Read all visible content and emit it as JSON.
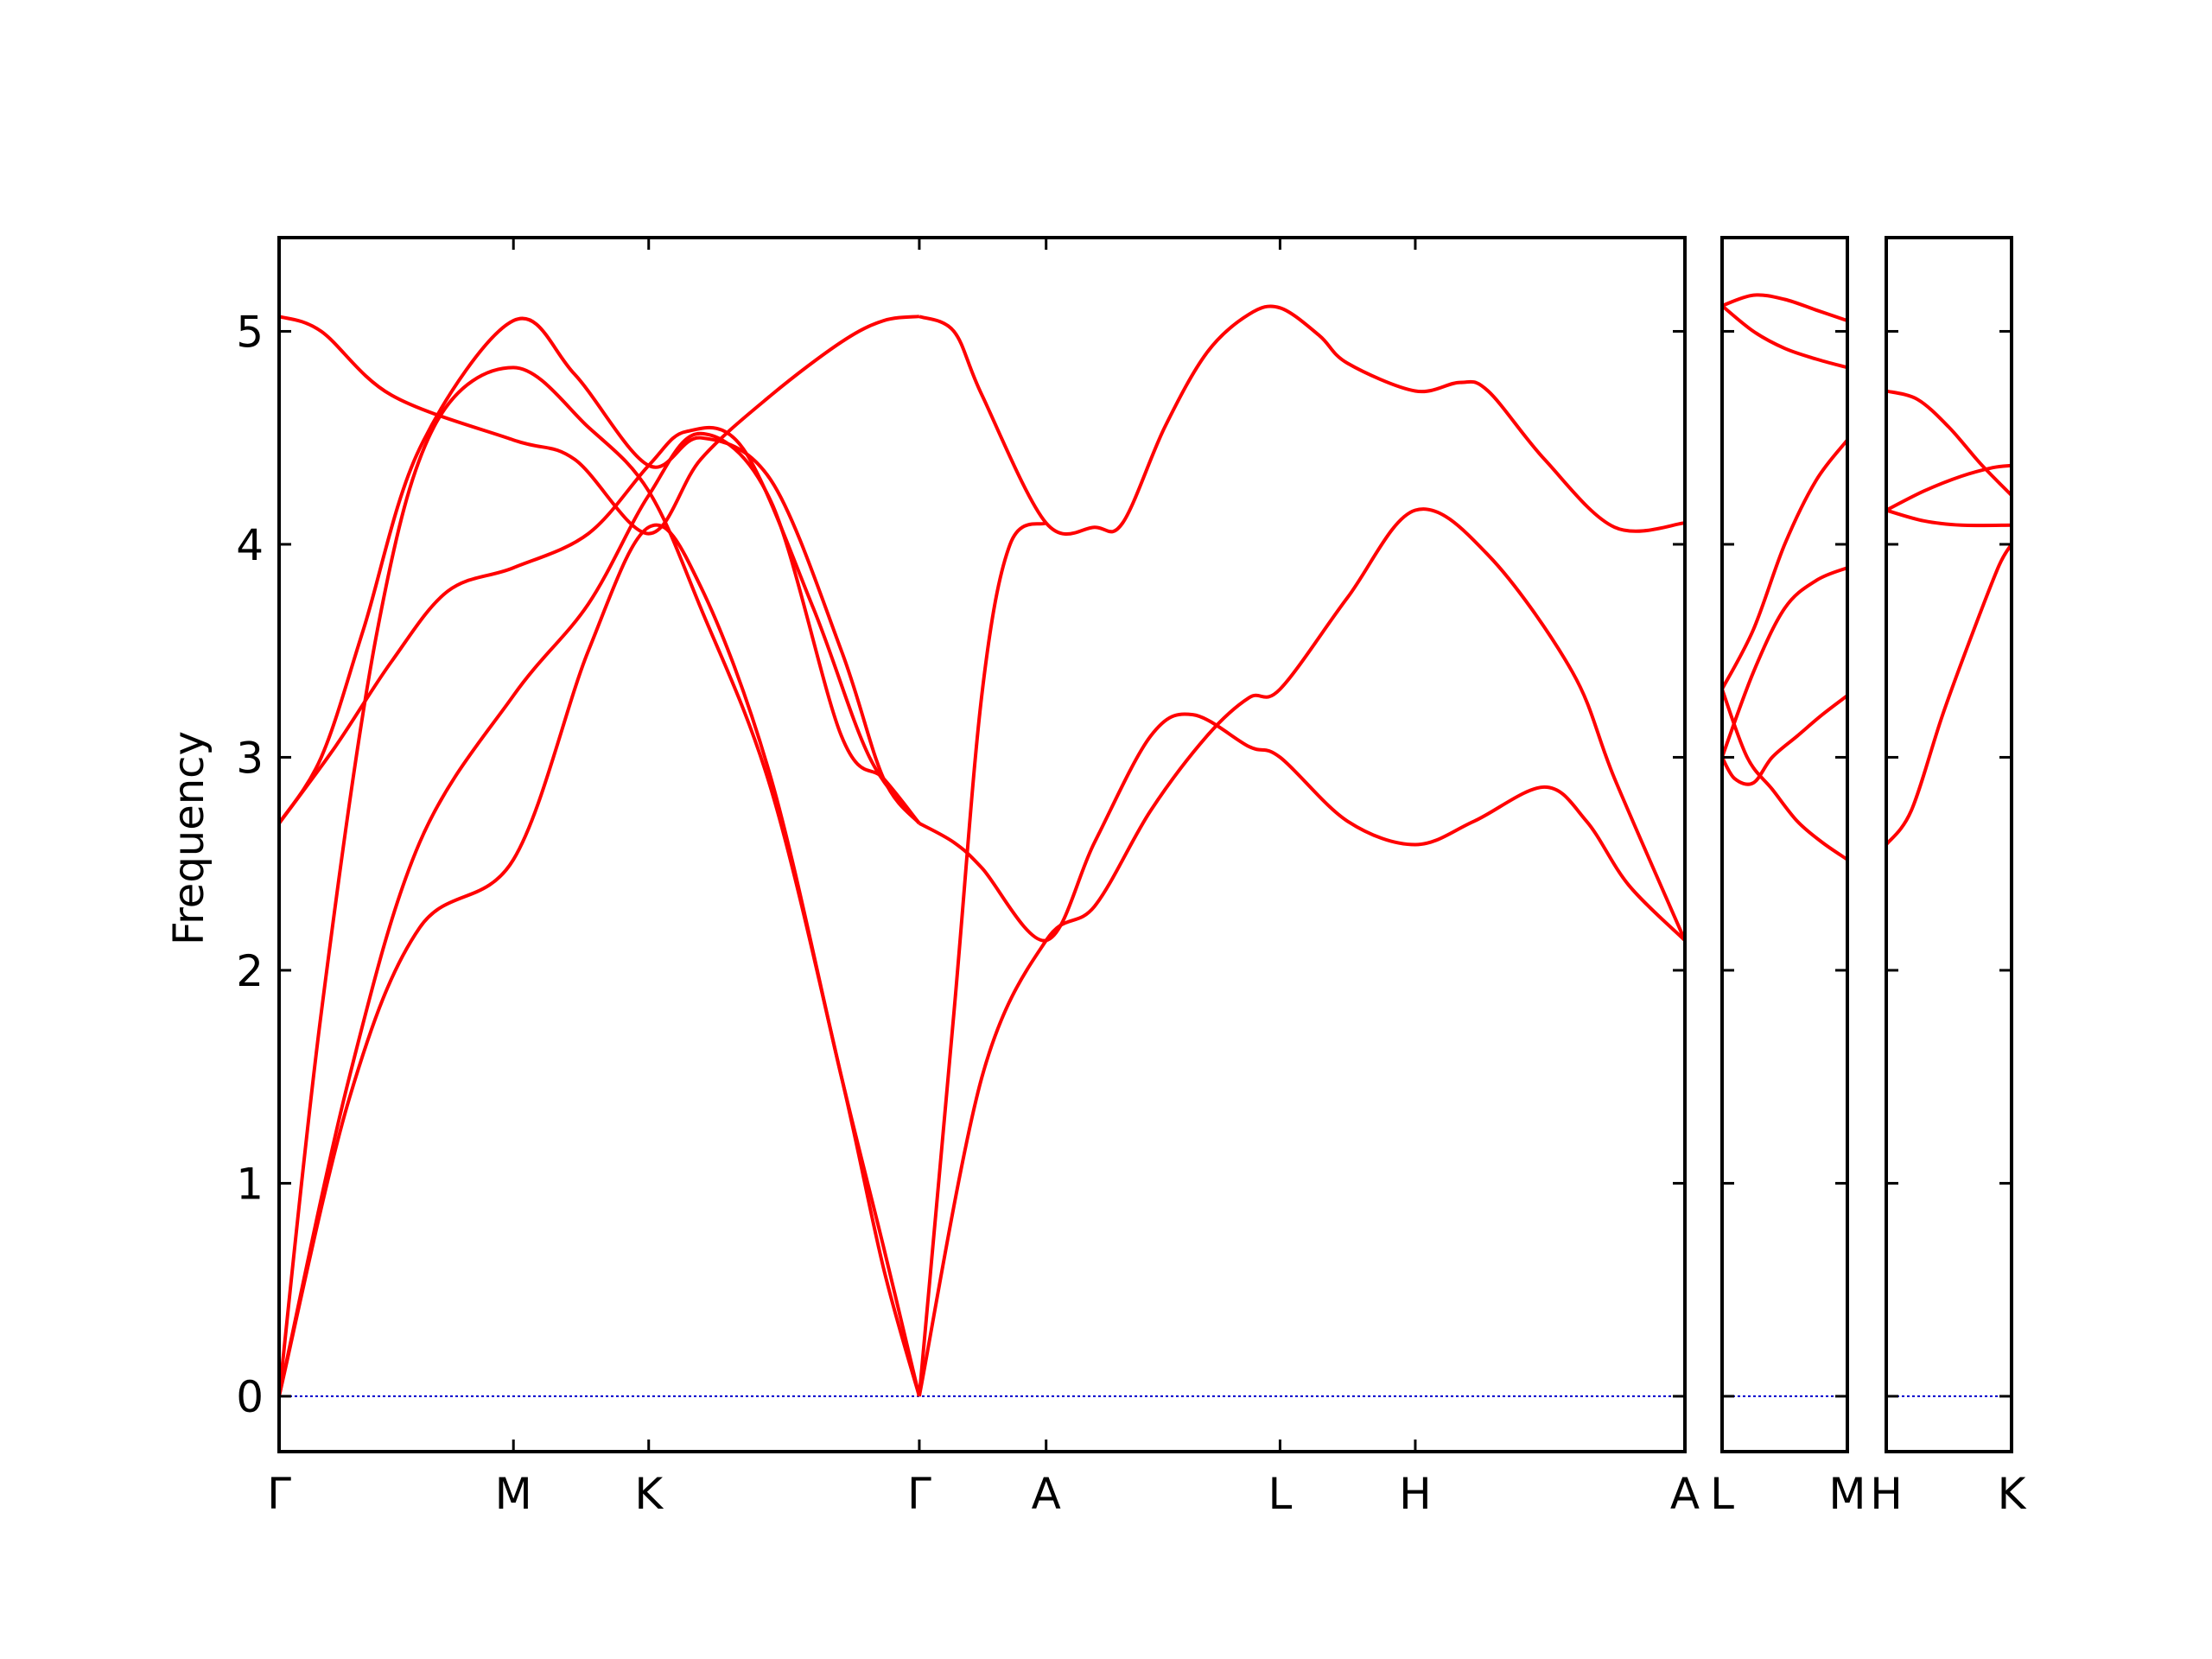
{
  "chart_data": {
    "type": "line",
    "title": "",
    "xlabel": "",
    "ylabel": "Frequency",
    "ylim": [
      -0.26,
      5.44
    ],
    "yticks": [
      0,
      1,
      2,
      3,
      4,
      5
    ],
    "grid": false,
    "legend": "none",
    "band_color": "#ff0000",
    "zero_line_color": "#0000cc",
    "panels": [
      {
        "x_range": [
          0,
          1
        ],
        "tick_positions": [
          0,
          0.1667,
          0.2629,
          0.4554,
          0.5456,
          0.712,
          0.8082,
          1.0
        ],
        "tick_labels": [
          "Γ",
          "M",
          "K",
          "Γ",
          "A",
          "L",
          "H",
          "A"
        ],
        "bands": [
          {
            "x": [
              0,
              0.05,
              0.1,
              0.1667,
              0.22,
              0.2629,
              0.3,
              0.35,
              0.4,
              0.43,
              0.4554
            ],
            "y": [
              0,
              1.4,
              2.2,
              2.52,
              3.5,
              4.08,
              3.8,
              2.9,
              1.5,
              0.7,
              0
            ]
          },
          {
            "x": [
              0,
              0.05,
              0.1,
              0.1667,
              0.22,
              0.2629,
              0.3,
              0.35,
              0.4,
              0.43,
              0.4554
            ],
            "y": [
              0,
              1.5,
              2.6,
              3.29,
              3.72,
              4.23,
              4.52,
              4.2,
              3.1,
              2.9,
              2.69
            ]
          },
          {
            "x": [
              0,
              0.04,
              0.08,
              0.12,
              0.1667,
              0.22,
              0.2629,
              0.29,
              0.33,
              0.38,
              0.42,
              0.4554
            ],
            "y": [
              2.69,
              3.05,
              3.45,
              3.78,
              3.89,
              4.05,
              4.37,
              4.53,
              4.45,
              3.7,
              3.0,
              2.69
            ]
          },
          {
            "x": [
              0,
              0.03,
              0.07,
              0.11,
              0.1667,
              0.22,
              0.2629,
              0.3,
              0.35,
              0.4,
              0.43,
              0.4554
            ],
            "y": [
              0,
              1.8,
              3.6,
              4.55,
              4.83,
              4.55,
              4.25,
              3.7,
              2.85,
              1.5,
              0.6,
              0
            ]
          },
          {
            "x": [
              0,
              0.03,
              0.06,
              0.1,
              0.1667,
              0.21,
              0.2629,
              0.3,
              0.35,
              0.4,
              0.43,
              0.4554
            ],
            "y": [
              2.69,
              3.0,
              3.6,
              4.45,
              5.05,
              4.8,
              4.37,
              4.5,
              4.3,
              3.5,
              2.9,
              2.69
            ]
          },
          {
            "x": [
              0,
              0.03,
              0.08,
              0.1667,
              0.21,
              0.2629,
              0.3,
              0.35,
              0.4,
              0.43,
              0.4554
            ],
            "y": [
              5.07,
              5.0,
              4.7,
              4.49,
              4.4,
              4.05,
              4.4,
              4.7,
              4.95,
              5.05,
              5.07
            ]
          },
          {
            "x": [
              0.4554,
              0.48,
              0.5,
              0.5456,
              0.58,
              0.6,
              0.63,
              0.66,
              0.69,
              0.712,
              0.74,
              0.76,
              0.8082,
              0.84,
              0.86,
              0.9,
              0.95,
              1.0
            ],
            "y": [
              5.07,
              5.0,
              4.7,
              4.1,
              4.08,
              4.1,
              4.55,
              4.9,
              5.08,
              5.11,
              4.98,
              4.85,
              4.72,
              4.76,
              4.72,
              4.4,
              4.08,
              4.1
            ]
          },
          {
            "x": [
              0.4554,
              0.48,
              0.5,
              0.5456,
              0.58,
              0.62,
              0.65,
              0.69,
              0.712,
              0.76,
              0.8082,
              0.85,
              0.9,
              0.93,
              0.96,
              1.0
            ],
            "y": [
              2.69,
              2.6,
              2.48,
              2.14,
              2.6,
              3.1,
              3.2,
              3.05,
              3.0,
              2.7,
              2.59,
              2.7,
              2.86,
              2.7,
              2.4,
              2.14
            ]
          },
          {
            "x": [
              0.4554,
              0.5,
              0.5456,
              0.58,
              0.62,
              0.66,
              0.69,
              0.712,
              0.76,
              0.8082,
              0.86,
              0.92,
              0.95,
              1.0
            ],
            "y": [
              0,
              1.5,
              2.14,
              2.3,
              2.75,
              3.1,
              3.28,
              3.32,
              3.75,
              4.16,
              3.95,
              3.4,
              2.9,
              2.14
            ]
          },
          {
            "x": [
              0.4554,
              0.48,
              0.5,
              0.52,
              0.5456
            ],
            "y": [
              0,
              1.8,
              3.3,
              4.0,
              4.1
            ]
          }
        ]
      },
      {
        "x_range": [
          0,
          1
        ],
        "tick_positions": [
          0,
          1.0
        ],
        "tick_labels": [
          "L",
          "M"
        ],
        "bands": [
          {
            "x": [
              0,
              0.1,
              0.25,
              0.4,
              0.6,
              0.8,
              1.0
            ],
            "y": [
              3.0,
              2.9,
              2.88,
              3.0,
              3.1,
              3.2,
              3.29
            ]
          },
          {
            "x": [
              0,
              0.2,
              0.4,
              0.6,
              0.8,
              1.0
            ],
            "y": [
              3.32,
              3.0,
              2.85,
              2.7,
              2.6,
              2.52
            ]
          },
          {
            "x": [
              0,
              0.25,
              0.5,
              0.75,
              1.0
            ],
            "y": [
              3.0,
              3.4,
              3.7,
              3.83,
              3.89
            ]
          },
          {
            "x": [
              0,
              0.25,
              0.5,
              0.75,
              1.0
            ],
            "y": [
              3.32,
              3.6,
              4.0,
              4.3,
              4.49
            ]
          },
          {
            "x": [
              0,
              0.25,
              0.5,
              0.75,
              1.0
            ],
            "y": [
              5.12,
              5.0,
              4.92,
              4.87,
              4.83
            ]
          },
          {
            "x": [
              0,
              0.25,
              0.5,
              0.75,
              1.0
            ],
            "y": [
              5.12,
              5.17,
              5.15,
              5.1,
              5.05
            ]
          }
        ]
      },
      {
        "x_range": [
          0,
          1
        ],
        "tick_positions": [
          0,
          1.0
        ],
        "tick_labels": [
          "H",
          "K"
        ],
        "bands": [
          {
            "x": [
              0,
              0.2,
              0.45,
              0.7,
              0.9,
              1.0
            ],
            "y": [
              2.59,
              2.75,
              3.2,
              3.6,
              3.9,
              4.0
            ]
          },
          {
            "x": [
              0,
              0.3,
              0.6,
              1.0
            ],
            "y": [
              4.16,
              4.11,
              4.09,
              4.09
            ]
          },
          {
            "x": [
              0,
              0.3,
              0.6,
              0.85,
              1.0
            ],
            "y": [
              4.16,
              4.25,
              4.32,
              4.36,
              4.37
            ]
          },
          {
            "x": [
              0,
              0.25,
              0.5,
              0.75,
              1.0
            ],
            "y": [
              4.72,
              4.68,
              4.55,
              4.38,
              4.23
            ]
          }
        ]
      }
    ]
  }
}
